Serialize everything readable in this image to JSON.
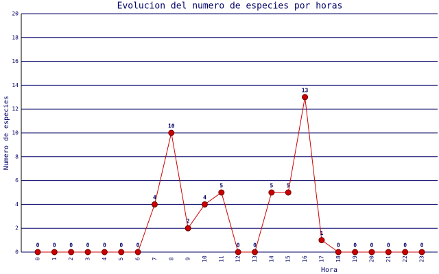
{
  "chart_data": {
    "type": "line",
    "title": "Evolucion del numero de especies por horas",
    "x_label": "Hora",
    "y_label": "Numero de especies",
    "categories": [
      "0",
      "1",
      "2",
      "3",
      "4",
      "5",
      "6",
      "7",
      "8",
      "9",
      "10",
      "11",
      "12",
      "13",
      "14",
      "15",
      "16",
      "17",
      "18",
      "19",
      "20",
      "21",
      "22",
      "23"
    ],
    "series": [
      {
        "name": "Numero de especies",
        "color": "#cc0000",
        "values": [
          0,
          0,
          0,
          0,
          0,
          0,
          0,
          4,
          10,
          2,
          4,
          5,
          0,
          0,
          5,
          5,
          13,
          1,
          0,
          0,
          0,
          0,
          0,
          0
        ]
      }
    ],
    "ylim": [
      0,
      20
    ],
    "yticks": [
      0,
      2,
      4,
      6,
      8,
      10,
      12,
      14,
      16,
      18,
      20
    ],
    "grid": true
  }
}
